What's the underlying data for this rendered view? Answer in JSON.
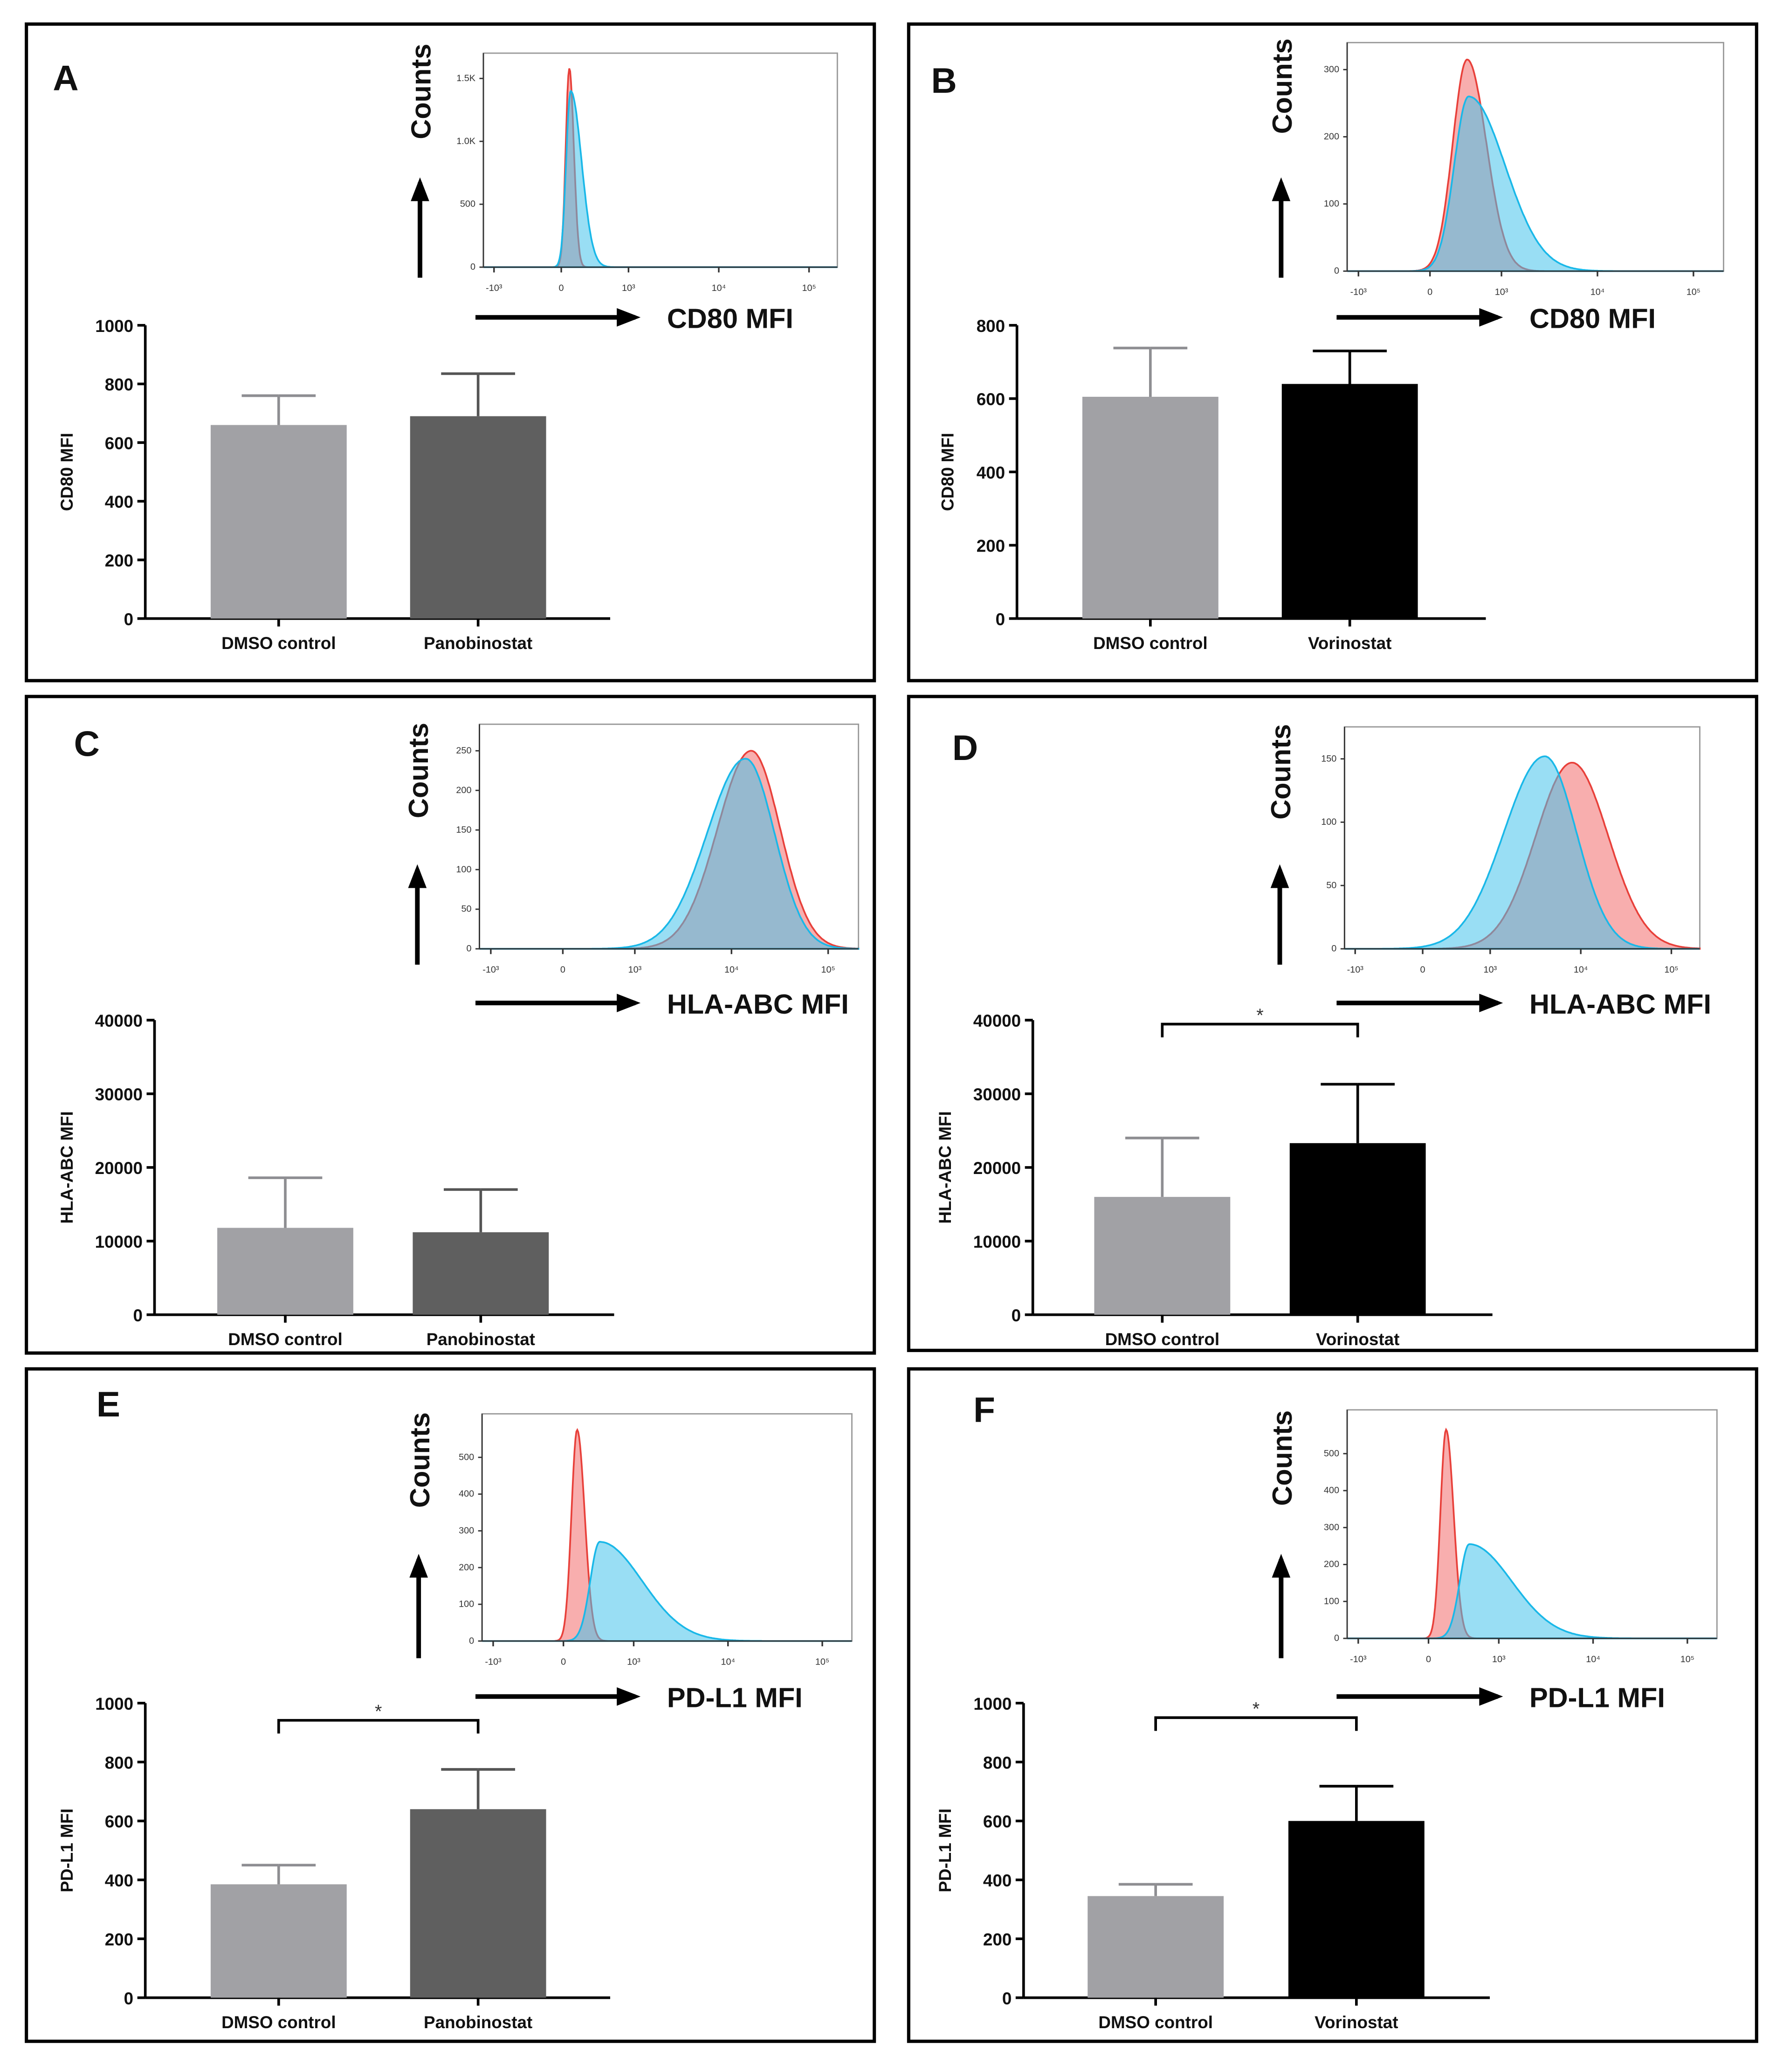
{
  "chart_data": [
    {
      "panel": "A",
      "type": "bar",
      "ylabel": "CD80 MFI",
      "ylim": [
        0,
        1000
      ],
      "yticks": [
        0,
        200,
        400,
        600,
        800,
        1000
      ],
      "categories": [
        "DMSO control",
        "Panobinostat"
      ],
      "values": [
        660,
        690
      ],
      "error_upper": [
        760,
        835
      ],
      "bar_colors": [
        "#a1a1a5",
        "#5f5f5f"
      ],
      "significance": null,
      "histogram": {
        "type": "area",
        "ylabel": "Counts",
        "xlabel": "CD80 MFI",
        "yticks": [
          "0",
          "500",
          "1.0K",
          "1.5K"
        ],
        "ytick_values": [
          0,
          500,
          1000,
          1500
        ],
        "ymax": 1650,
        "xticks": [
          "-10³",
          "0",
          "10³",
          "10⁴",
          "10⁵"
        ],
        "series": [
          {
            "name": "DMSO control",
            "color": "#e8403a",
            "peak_mfi": 120,
            "peak_counts": 1580,
            "spread_left": 0.04,
            "spread_right": 0.05
          },
          {
            "name": "Panobinostat",
            "color": "#1ab8e8",
            "peak_mfi": 140,
            "peak_counts": 1400,
            "spread_left": 0.05,
            "spread_right": 0.12
          }
        ]
      }
    },
    {
      "panel": "B",
      "type": "bar",
      "ylabel": "CD80 MFI",
      "ylim": [
        0,
        800
      ],
      "yticks": [
        0,
        200,
        400,
        600,
        800
      ],
      "categories": [
        "DMSO control",
        "Vorinostat"
      ],
      "values": [
        605,
        640
      ],
      "error_upper": [
        738,
        730
      ],
      "bar_colors": [
        "#a1a1a5",
        "#000000"
      ],
      "significance": null,
      "histogram": {
        "type": "area",
        "ylabel": "Counts",
        "xlabel": "CD80 MFI",
        "yticks": [
          "0",
          "100",
          "200",
          "300"
        ],
        "ytick_values": [
          0,
          100,
          200,
          300
        ],
        "ymax": 330,
        "xticks": [
          "-10³",
          "0",
          "10³",
          "10⁴",
          "10⁵"
        ],
        "series": [
          {
            "name": "DMSO control",
            "color": "#e8403a",
            "peak_mfi": 520,
            "peak_counts": 315,
            "spread_left": 0.15,
            "spread_right": 0.2
          },
          {
            "name": "Vorinostat",
            "color": "#1ab8e8",
            "peak_mfi": 540,
            "peak_counts": 260,
            "spread_left": 0.15,
            "spread_right": 0.38
          }
        ]
      }
    },
    {
      "panel": "C",
      "type": "bar",
      "ylabel": "HLA-ABC MFI",
      "ylim": [
        0,
        40000
      ],
      "yticks": [
        0,
        10000,
        20000,
        30000,
        40000
      ],
      "categories": [
        "DMSO control",
        "Panobinostat"
      ],
      "values": [
        11800,
        11200
      ],
      "error_upper": [
        18600,
        17000
      ],
      "bar_colors": [
        "#a1a1a5",
        "#5f5f5f"
      ],
      "significance": null,
      "histogram": {
        "type": "area",
        "ylabel": "Counts",
        "xlabel": "HLA-ABC MFI",
        "yticks": [
          "0",
          "50",
          "100",
          "150",
          "200",
          "250"
        ],
        "ytick_values": [
          0,
          50,
          100,
          150,
          200,
          250
        ],
        "ymax": 275,
        "xticks": [
          "-10³",
          "0",
          "10³",
          "10⁴",
          "10⁵"
        ],
        "series": [
          {
            "name": "DMSO control",
            "color": "#e8403a",
            "peak_mfi": 16000,
            "peak_counts": 250,
            "spread_left": 0.35,
            "spread_right": 0.3
          },
          {
            "name": "Panobinostat",
            "color": "#1ab8e8",
            "peak_mfi": 14000,
            "peak_counts": 240,
            "spread_left": 0.4,
            "spread_right": 0.3
          }
        ]
      }
    },
    {
      "panel": "D",
      "type": "bar",
      "ylabel": "HLA-ABC MFI",
      "ylim": [
        0,
        40000
      ],
      "yticks": [
        0,
        10000,
        20000,
        30000,
        40000
      ],
      "categories": [
        "DMSO control",
        "Vorinostat"
      ],
      "values": [
        16000,
        23300
      ],
      "error_upper": [
        24000,
        31300
      ],
      "bar_colors": [
        "#a1a1a5",
        "#000000"
      ],
      "significance": "*",
      "histogram": {
        "type": "area",
        "ylabel": "Counts",
        "xlabel": "HLA-ABC MFI",
        "yticks": [
          "0",
          "50",
          "100",
          "150"
        ],
        "ytick_values": [
          0,
          50,
          100,
          150
        ],
        "ymax": 170,
        "xticks": [
          "-10³",
          "0",
          "10³",
          "10⁴",
          "10⁵"
        ],
        "series": [
          {
            "name": "DMSO control",
            "color": "#e8403a",
            "peak_mfi": 8000,
            "peak_counts": 147,
            "spread_left": 0.4,
            "spread_right": 0.4
          },
          {
            "name": "Vorinostat",
            "color": "#1ab8e8",
            "peak_mfi": 4000,
            "peak_counts": 152,
            "spread_left": 0.45,
            "spread_right": 0.35
          }
        ]
      }
    },
    {
      "panel": "E",
      "type": "bar",
      "ylabel": "PD-L1 MFI",
      "ylim": [
        0,
        1000
      ],
      "yticks": [
        0,
        200,
        400,
        600,
        800,
        1000
      ],
      "categories": [
        "DMSO control",
        "Panobinostat"
      ],
      "values": [
        385,
        640
      ],
      "error_upper": [
        450,
        775
      ],
      "bar_colors": [
        "#a1a1a5",
        "#5f5f5f"
      ],
      "significance": "*",
      "histogram": {
        "type": "area",
        "ylabel": "Counts",
        "xlabel": "PD-L1 MFI",
        "yticks": [
          "0",
          "100",
          "200",
          "300",
          "400",
          "500"
        ],
        "ytick_values": [
          0,
          100,
          200,
          300,
          400,
          500
        ],
        "ymax": 600,
        "xticks": [
          "-10³",
          "0",
          "10³",
          "10⁴",
          "10⁵"
        ],
        "series": [
          {
            "name": "DMSO control",
            "color": "#e8403a",
            "peak_mfi": 195,
            "peak_counts": 575,
            "spread_left": 0.06,
            "spread_right": 0.08
          },
          {
            "name": "Panobinostat",
            "color": "#1ab8e8",
            "peak_mfi": 516,
            "peak_counts": 270,
            "spread_left": 0.1,
            "spread_right": 0.45
          }
        ]
      }
    },
    {
      "panel": "F",
      "type": "bar",
      "ylabel": "PD-L1 MFI",
      "ylim": [
        0,
        1000
      ],
      "yticks": [
        0,
        200,
        400,
        600,
        800,
        1000
      ],
      "categories": [
        "DMSO control",
        "Vorinostat"
      ],
      "values": [
        345,
        600
      ],
      "error_upper": [
        385,
        718
      ],
      "bar_colors": [
        "#a1a1a5",
        "#000000"
      ],
      "significance": "*",
      "histogram": {
        "type": "area",
        "ylabel": "Counts",
        "xlabel": "PD-L1 MFI",
        "yticks": [
          "0",
          "100",
          "200",
          "300",
          "400",
          "500"
        ],
        "ytick_values": [
          0,
          100,
          200,
          300,
          400,
          500
        ],
        "ymax": 600,
        "xticks": [
          "-10³",
          "0",
          "10³",
          "10⁴",
          "10⁵"
        ],
        "series": [
          {
            "name": "DMSO control",
            "color": "#e8403a",
            "peak_mfi": 250,
            "peak_counts": 565,
            "spread_left": 0.06,
            "spread_right": 0.08
          },
          {
            "name": "Vorinostat",
            "color": "#1ab8e8",
            "peak_mfi": 580,
            "peak_counts": 255,
            "spread_left": 0.1,
            "spread_right": 0.45
          }
        ]
      }
    }
  ]
}
